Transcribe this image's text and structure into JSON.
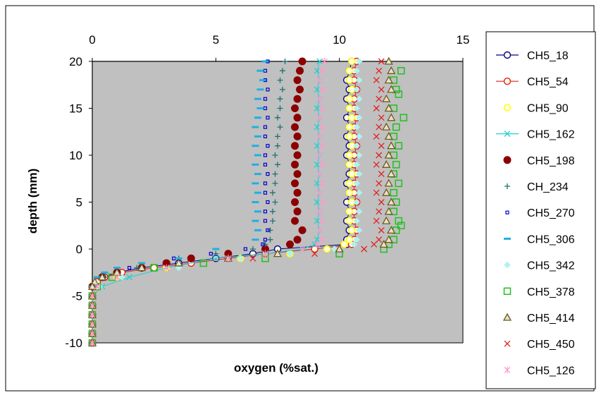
{
  "chart_data": {
    "type": "scatter",
    "title": "",
    "xlabel": "oxygen (%sat.)",
    "ylabel": "depth (mm)",
    "xlim": [
      0,
      15
    ],
    "ylim": [
      -10,
      20
    ],
    "x_axis_position": "top",
    "x_ticks": [
      "0",
      "5",
      "10",
      "15"
    ],
    "y_ticks": [
      "20",
      "15",
      "10",
      "5",
      "0",
      "-5",
      "-10"
    ],
    "plot_background": "#c0c0c0",
    "grid": false,
    "legend_position": "right",
    "series": [
      {
        "name": "CH5_18",
        "color": "#00008b",
        "marker": "circle-open-line",
        "depth": [
          20,
          19,
          18,
          17,
          16,
          15,
          14,
          13,
          12,
          11,
          10,
          9,
          8,
          7,
          6,
          5,
          4,
          3,
          2,
          1,
          0.5,
          0,
          -0.5,
          -1,
          -1.5,
          -2,
          -2.5,
          -3,
          -3.5,
          -4,
          -5,
          -6,
          -7,
          -8,
          -9,
          -10
        ],
        "oxygen": [
          10.5,
          10.4,
          10.3,
          10.4,
          10.3,
          10.4,
          10.3,
          10.4,
          10.3,
          10.4,
          10.3,
          10.4,
          10.4,
          10.3,
          10.4,
          10.3,
          10.4,
          10.3,
          10.4,
          10.3,
          10.3,
          7.5,
          6.5,
          5,
          3.5,
          2,
          1,
          0.5,
          0.2,
          0,
          0,
          0,
          0,
          0,
          0,
          0
        ]
      },
      {
        "name": "CH5_54",
        "color": "#e02020",
        "marker": "circle-open-line",
        "depth": [
          20,
          19,
          18,
          17,
          16,
          15,
          14,
          13,
          12,
          11,
          10,
          9,
          8,
          7,
          6,
          5,
          4,
          3,
          2,
          1,
          0.5,
          0,
          -0.5,
          -1,
          -1.5,
          -2,
          -2.5,
          -3,
          -3.5,
          -4,
          -5,
          -6,
          -7,
          -8,
          -9,
          -10
        ],
        "oxygen": [
          10.7,
          10.6,
          10.6,
          10.7,
          10.6,
          10.6,
          10.7,
          10.6,
          10.6,
          10.7,
          10.6,
          10.6,
          10.7,
          10.6,
          10.6,
          10.7,
          10.6,
          10.6,
          10.7,
          10.6,
          10.5,
          9,
          7,
          5.5,
          4,
          2.5,
          1.2,
          0.5,
          0.2,
          0,
          0,
          0,
          0,
          0,
          0,
          0
        ]
      },
      {
        "name": "CH5_90",
        "color": "#ffff00",
        "marker": "circle-open",
        "depth": [
          20,
          19,
          18,
          17,
          16,
          15,
          14,
          13,
          12,
          11,
          10,
          9,
          8,
          7,
          6,
          5,
          4,
          3,
          2,
          1,
          0.5,
          0,
          -0.5,
          -1,
          -2,
          -3,
          -4,
          -5,
          -6,
          -7,
          -8,
          -9,
          -10
        ],
        "oxygen": [
          10.5,
          10.4,
          10.4,
          10.5,
          10.4,
          10.4,
          10.5,
          10.4,
          10.4,
          10.5,
          10.4,
          10.4,
          10.5,
          10.4,
          10.4,
          10.5,
          10.4,
          10.4,
          10.5,
          10.4,
          10.2,
          9.5,
          8,
          6,
          3,
          1,
          0.2,
          0,
          0,
          0,
          0,
          0,
          0
        ]
      },
      {
        "name": "CH5_162",
        "color": "#20d0d0",
        "marker": "x-line",
        "depth": [
          20,
          19,
          18,
          17,
          16,
          15,
          14,
          13,
          12,
          11,
          10,
          9,
          8,
          7,
          6,
          5,
          4,
          3,
          2,
          1,
          0.5,
          0,
          -0.5,
          -1,
          -2,
          -3,
          -4,
          -5,
          -6,
          -7,
          -8,
          -9,
          -10
        ],
        "oxygen": [
          9.2,
          9.1,
          9.2,
          9.1,
          9.2,
          9.1,
          9.2,
          9.1,
          9.2,
          9.1,
          9.2,
          9.1,
          9.2,
          9.1,
          9.2,
          9.1,
          9.2,
          9.1,
          9.2,
          9.1,
          9.0,
          8.5,
          7,
          5,
          3,
          1.5,
          0.4,
          0,
          0,
          0,
          0,
          0,
          0
        ]
      },
      {
        "name": "CH5_198",
        "color": "#8b0000",
        "marker": "circle-filled",
        "depth": [
          20,
          19,
          18,
          17,
          16,
          15,
          14,
          13,
          12,
          11,
          10,
          9,
          8,
          7,
          6,
          5,
          4,
          3,
          2,
          1,
          0.5,
          0,
          -0.5,
          -1,
          -1.5,
          -2,
          -2.5,
          -3,
          -4,
          -5,
          -6,
          -7,
          -8,
          -9,
          -10
        ],
        "oxygen": [
          8.5,
          8.4,
          8.3,
          8.4,
          8.3,
          8.2,
          8.3,
          8.2,
          8.3,
          8.2,
          8.3,
          8.2,
          8.3,
          8.2,
          8.3,
          8.2,
          8.3,
          8.2,
          8.5,
          8.3,
          8.0,
          7,
          5.5,
          4,
          3,
          2,
          1,
          0.4,
          0,
          0,
          0,
          0,
          0,
          0,
          0
        ]
      },
      {
        "name": "CH_234",
        "color": "#207070",
        "marker": "plus",
        "depth": [
          20,
          19,
          18,
          17,
          16,
          15,
          14,
          13,
          12,
          11,
          10,
          9,
          8,
          7,
          6,
          5,
          4,
          3,
          2,
          1,
          0.5,
          0,
          -0.5,
          -1,
          -2,
          -3,
          -4,
          -5,
          -6,
          -7,
          -8,
          -9,
          -10
        ],
        "oxygen": [
          7.8,
          7.7,
          7.6,
          7.7,
          7.6,
          7.6,
          7.5,
          7.6,
          7.5,
          7.5,
          7.4,
          7.5,
          7.4,
          7.4,
          7.3,
          7.4,
          7.3,
          7.3,
          7.2,
          7.2,
          7.0,
          6.5,
          5,
          3.5,
          1.8,
          0.5,
          0,
          0,
          0,
          0,
          0,
          0,
          0
        ]
      },
      {
        "name": "CH5_270",
        "color": "#0000cd",
        "marker": "square-small",
        "depth": [
          20,
          19,
          18,
          17,
          16,
          15,
          14,
          13,
          12,
          11,
          10,
          9,
          8,
          7,
          6,
          5,
          4,
          3,
          2,
          1,
          0.5,
          0,
          -0.5,
          -1,
          -2,
          -3,
          -4,
          -5,
          -6,
          -7,
          -8,
          -9,
          -10
        ],
        "oxygen": [
          7.1,
          7.0,
          7.0,
          7.1,
          7.0,
          7.0,
          7.1,
          7.0,
          7.0,
          7.1,
          7.0,
          7.0,
          7.1,
          7.0,
          7.0,
          7.1,
          7.0,
          7.0,
          7.1,
          7.0,
          6.9,
          6.2,
          4.8,
          3.3,
          1.5,
          0.4,
          0,
          0,
          0,
          0,
          0,
          0,
          0
        ]
      },
      {
        "name": "CH5_306",
        "color": "#20b0e0",
        "marker": "dash",
        "depth": [
          20,
          19,
          18,
          17,
          16,
          15,
          14,
          13,
          12,
          11,
          10,
          9,
          8,
          7,
          6,
          5,
          4,
          3,
          2,
          1,
          0,
          -1,
          -1.5,
          -2,
          -2.5,
          -3,
          -4,
          -5,
          -6,
          -7,
          -8,
          -9,
          -10
        ],
        "oxygen": [
          7.0,
          6.8,
          6.9,
          6.8,
          6.7,
          6.8,
          6.7,
          6.6,
          6.7,
          6.6,
          6.7,
          6.6,
          6.7,
          6.6,
          6.7,
          6.6,
          6.7,
          6.6,
          6.7,
          6.6,
          5,
          3.5,
          2,
          1,
          0.5,
          0.2,
          0,
          0,
          0,
          0,
          0,
          0,
          0
        ]
      },
      {
        "name": "CH5_342",
        "color": "#b0f0f0",
        "marker": "diamond-filled",
        "depth": [
          20,
          19,
          18,
          17,
          16,
          15,
          14,
          13,
          12,
          11,
          10,
          9,
          8,
          7,
          6,
          5,
          4,
          3,
          2,
          1,
          0.5,
          0,
          -0.5,
          -1,
          -2,
          -3,
          -4,
          -5,
          -6,
          -7,
          -8,
          -9,
          -10
        ],
        "oxygen": [
          10.8,
          10.7,
          10.8,
          10.7,
          10.8,
          10.7,
          10.8,
          10.7,
          10.8,
          10.7,
          10.8,
          10.7,
          10.8,
          10.7,
          10.8,
          10.7,
          10.8,
          10.7,
          10.8,
          10.7,
          10.6,
          9.8,
          8,
          6,
          3.5,
          1.2,
          0.3,
          0,
          0,
          0,
          0,
          0,
          0
        ]
      },
      {
        "name": "CH5_378",
        "color": "#20c020",
        "marker": "square-open",
        "depth": [
          19,
          18,
          17,
          16.5,
          15,
          14,
          13,
          12,
          11,
          10,
          9,
          8,
          7,
          6,
          5,
          4,
          3,
          2.5,
          2,
          1,
          0.5,
          0,
          -0.5,
          -1,
          -1.5,
          -2,
          -3,
          -4,
          -5,
          -6,
          -7,
          -8,
          -9,
          -10
        ],
        "oxygen": [
          12.5,
          12.2,
          12.3,
          12.4,
          12.2,
          12.6,
          12.3,
          12.2,
          12.4,
          12.2,
          12.3,
          12.2,
          12.4,
          12.2,
          12.3,
          12.2,
          12.4,
          12.5,
          12.3,
          12.2,
          12.0,
          11.8,
          10,
          7,
          4.5,
          2.5,
          0.8,
          0.2,
          0,
          0,
          0,
          0,
          0,
          0
        ]
      },
      {
        "name": "CH5_414",
        "color": "#6b5a20",
        "marker": "triangle-open",
        "depth": [
          20,
          19,
          18,
          17,
          16,
          15,
          14,
          13,
          12,
          11,
          10,
          9,
          8,
          7,
          6,
          5,
          4,
          3,
          2,
          1,
          0.5,
          0,
          -0.5,
          -1,
          -1.5,
          -2,
          -2.5,
          -3,
          -3.5,
          -4,
          -5,
          -6,
          -7,
          -8,
          -9,
          -10
        ],
        "oxygen": [
          12.0,
          12.1,
          12.0,
          12.1,
          11.9,
          12.0,
          12.1,
          11.9,
          12.0,
          12.1,
          12.0,
          11.9,
          12.1,
          12.0,
          11.9,
          12.1,
          12.0,
          11.9,
          12.1,
          12.0,
          11.8,
          10,
          7.5,
          5.5,
          3.5,
          2,
          1,
          0.4,
          0.1,
          0,
          0,
          0,
          0,
          0,
          0,
          0
        ]
      },
      {
        "name": "CH5_450",
        "color": "#e02020",
        "marker": "x",
        "depth": [
          20,
          19,
          18,
          17,
          16,
          15,
          14,
          13,
          12,
          11,
          10,
          9,
          8,
          7,
          6,
          5,
          4,
          3,
          2,
          1,
          0.5,
          0,
          -0.5,
          -1,
          -2,
          -3,
          -4,
          -5,
          -6,
          -7,
          -8,
          -9,
          -10
        ],
        "oxygen": [
          11.7,
          11.6,
          11.5,
          11.7,
          11.6,
          11.5,
          11.7,
          11.6,
          11.5,
          11.7,
          11.6,
          11.5,
          11.7,
          11.6,
          11.5,
          11.7,
          11.6,
          11.5,
          11.7,
          11.6,
          11.4,
          11,
          9,
          6.5,
          3,
          1,
          0.2,
          0,
          0,
          0,
          0,
          0,
          0
        ]
      },
      {
        "name": "CH5_126",
        "color": "#ff99cc",
        "marker": "asterisk",
        "depth": [
          20,
          19,
          18,
          17,
          16,
          15,
          14,
          13,
          12,
          11,
          10,
          9,
          8,
          7,
          6,
          5,
          4,
          3,
          2,
          1,
          0.5,
          0,
          -0.5,
          -1,
          -2,
          -3,
          -4,
          -5,
          -6,
          -7,
          -8,
          -9,
          -10
        ],
        "oxygen": [
          9.4,
          9.3,
          9.2,
          9.3,
          9.2,
          9.3,
          9.2,
          9.3,
          9.2,
          9.3,
          9.2,
          9.3,
          9.2,
          9.3,
          9.2,
          9.3,
          9.2,
          9.3,
          9.2,
          9.3,
          9.1,
          8.5,
          7,
          5.5,
          3,
          1,
          0.2,
          0,
          0,
          0,
          0,
          0,
          0
        ]
      }
    ]
  }
}
